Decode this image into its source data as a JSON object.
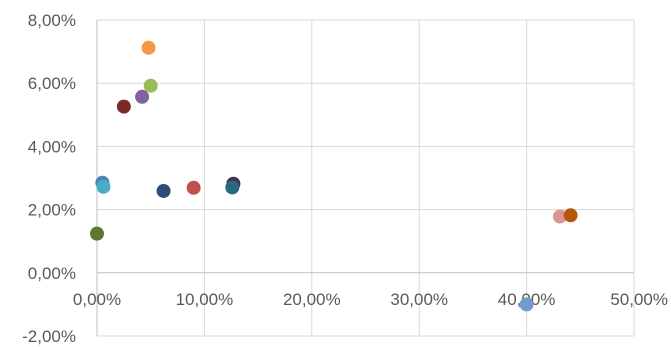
{
  "chart_data": {
    "type": "scatter",
    "title": "",
    "xlabel": "",
    "ylabel": "",
    "xlim": [
      0,
      0.5
    ],
    "ylim": [
      -0.02,
      0.08
    ],
    "x_ticks": [
      0,
      0.1,
      0.2,
      0.3,
      0.4,
      0.5
    ],
    "x_tick_labels": [
      "0,00%",
      "10,00%",
      "20,00%",
      "30,00%",
      "40,00%",
      "50,00%"
    ],
    "y_ticks": [
      -0.02,
      0,
      0.02,
      0.04,
      0.06,
      0.08
    ],
    "y_tick_labels": [
      "-2,00%",
      "0,00%",
      "2,00%",
      "4,00%",
      "6,00%",
      "8,00%"
    ],
    "grid": true,
    "legend": "none",
    "points": [
      {
        "x": 0.048,
        "y": 0.0712,
        "color": "#f79646"
      },
      {
        "x": 0.05,
        "y": 0.0592,
        "color": "#9bbb59"
      },
      {
        "x": 0.042,
        "y": 0.0557,
        "color": "#8064a2"
      },
      {
        "x": 0.025,
        "y": 0.0526,
        "color": "#772c2a"
      },
      {
        "x": 0.005,
        "y": 0.0285,
        "color": "#4f81bd"
      },
      {
        "x": 0.006,
        "y": 0.0272,
        "color": "#4bacc6"
      },
      {
        "x": 0.062,
        "y": 0.0259,
        "color": "#2c4d75"
      },
      {
        "x": 0.09,
        "y": 0.0269,
        "color": "#c0504d"
      },
      {
        "x": 0.127,
        "y": 0.0282,
        "color": "#403151"
      },
      {
        "x": 0.126,
        "y": 0.027,
        "color": "#276a7c"
      },
      {
        "x": 0.0,
        "y": 0.0124,
        "color": "#5f7530"
      },
      {
        "x": 0.431,
        "y": 0.0178,
        "color": "#d99694"
      },
      {
        "x": 0.441,
        "y": 0.0182,
        "color": "#b65708"
      },
      {
        "x": 0.4,
        "y": -0.01,
        "color": "#729aca"
      }
    ]
  }
}
